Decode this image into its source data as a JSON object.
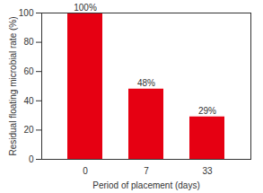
{
  "chart_data": {
    "type": "bar",
    "categories": [
      "0",
      "7",
      "33"
    ],
    "values": [
      100,
      48,
      29
    ],
    "value_labels": [
      "100%",
      "48%",
      "29%"
    ],
    "data_labels": true,
    "color": "#e60012",
    "xlabel": "Period of placement (days)",
    "ylabel": "Residual floating microbial rate (%)",
    "ylim": [
      0,
      100
    ],
    "yticks": [
      0,
      20,
      40,
      60,
      80,
      100
    ],
    "grid": false
  }
}
